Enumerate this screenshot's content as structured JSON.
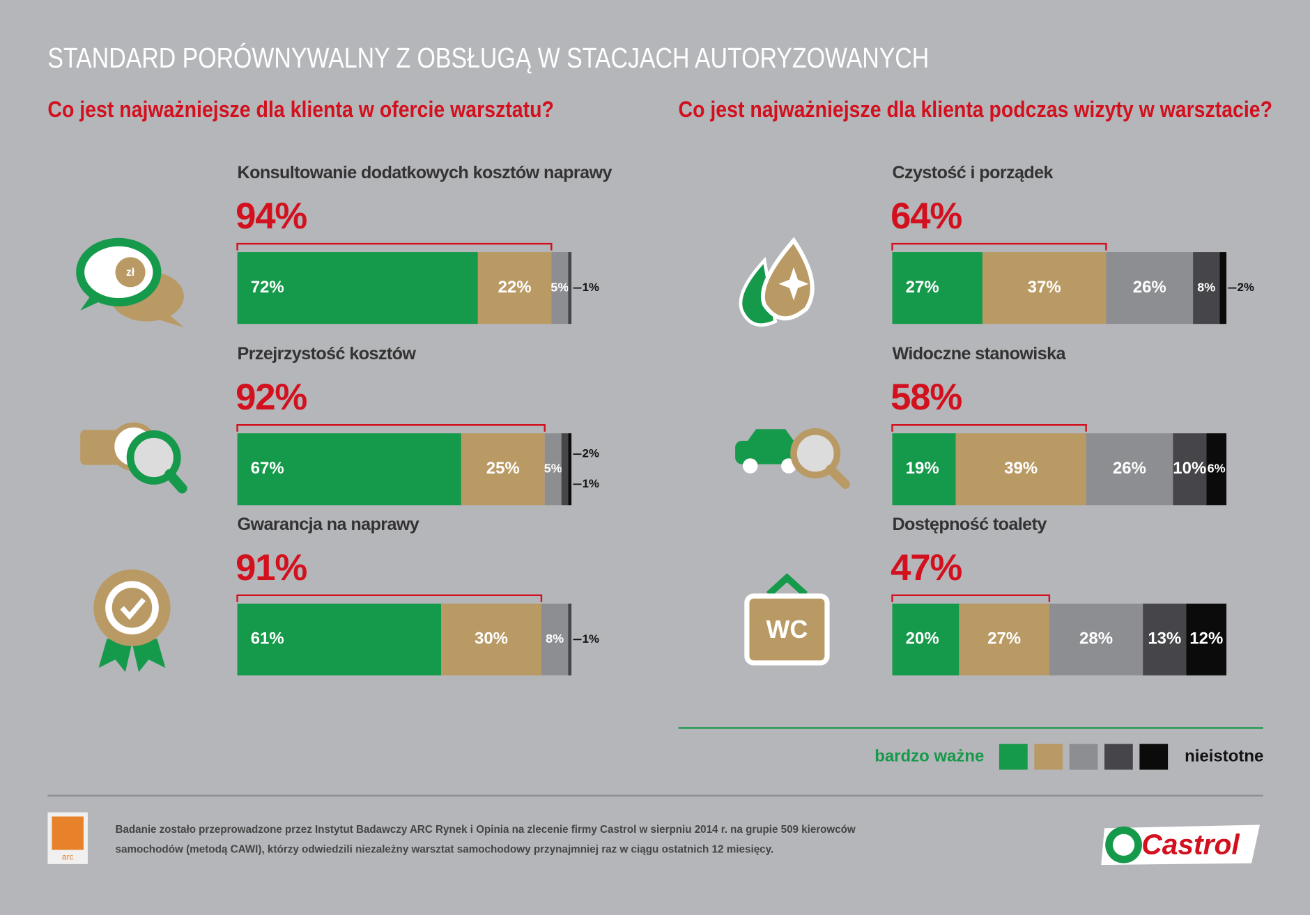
{
  "title": "STANDARD PORÓWNYWALNY Z OBSŁUGĄ W STACJACH AUTORYZOWANYCH",
  "questions": [
    "Co jest najważniejsze dla klienta w ofercie warsztatu?",
    "Co jest najważniejsze dla klienta podczas wizyty w warsztacie?"
  ],
  "chart_data": [
    {
      "type": "stacked-bar",
      "title": "Konsultowanie dodatkowych kosztów naprawy",
      "highlight": {
        "value": 94,
        "label": "94%"
      },
      "values": [
        72,
        22,
        5,
        1
      ],
      "value_labels": [
        "72%",
        "22%",
        "5%",
        "1%"
      ],
      "xlim": [
        0,
        100
      ]
    },
    {
      "type": "stacked-bar",
      "title": "Przejrzystość kosztów",
      "highlight": {
        "value": 92,
        "label": "92%"
      },
      "values": [
        67,
        25,
        5,
        2,
        1
      ],
      "value_labels": [
        "67%",
        "25%",
        "5%",
        "2%",
        "1%"
      ],
      "xlim": [
        0,
        100
      ]
    },
    {
      "type": "stacked-bar",
      "title": "Gwarancja na naprawy",
      "highlight": {
        "value": 91,
        "label": "91%"
      },
      "values": [
        61,
        30,
        8,
        1
      ],
      "value_labels": [
        "61%",
        "30%",
        "8%",
        "1%"
      ],
      "xlim": [
        0,
        100
      ]
    },
    {
      "type": "stacked-bar",
      "title": "Czystość i porządek",
      "highlight": {
        "value": 64,
        "label": "64%"
      },
      "values": [
        27,
        37,
        26,
        8,
        2
      ],
      "value_labels": [
        "27%",
        "37%",
        "26%",
        "8%",
        "2%"
      ],
      "xlim": [
        0,
        100
      ]
    },
    {
      "type": "stacked-bar",
      "title": "Widoczne stanowiska",
      "highlight": {
        "value": 58,
        "label": "58%"
      },
      "values": [
        19,
        39,
        26,
        10,
        6
      ],
      "value_labels": [
        "19%",
        "39%",
        "26%",
        "10%",
        "6%"
      ],
      "xlim": [
        0,
        100
      ]
    },
    {
      "type": "stacked-bar",
      "title": "Dostępność toalety",
      "highlight": {
        "value": 47,
        "label": "47%"
      },
      "values": [
        20,
        27,
        28,
        13,
        12
      ],
      "value_labels": [
        "20%",
        "27%",
        "28%",
        "13%",
        "12%"
      ],
      "xlim": [
        0,
        100
      ]
    }
  ],
  "legend": {
    "low": "bardzo ważne",
    "high": "nieistotne",
    "colors": [
      "#15994a",
      "#b99a64",
      "#8d8e91",
      "#46464a",
      "#0b0b0b"
    ]
  },
  "footer": {
    "lines": [
      "Badanie zostało przeprowadzone przez Instytut Badawczy ARC Rynek i Opinia na zlecenie firmy Castrol w sierpniu 2014 r. na grupie 509 kierowców",
      "samochodów (metodą CAWI), którzy odwiedzili niezależny warsztat samochodowy przynajmniej raz w ciągu ostatnich 12 miesięcy."
    ],
    "logo_left": "arc",
    "logo_right": "Castrol"
  },
  "icon_text": [
    "zł",
    "WC"
  ]
}
